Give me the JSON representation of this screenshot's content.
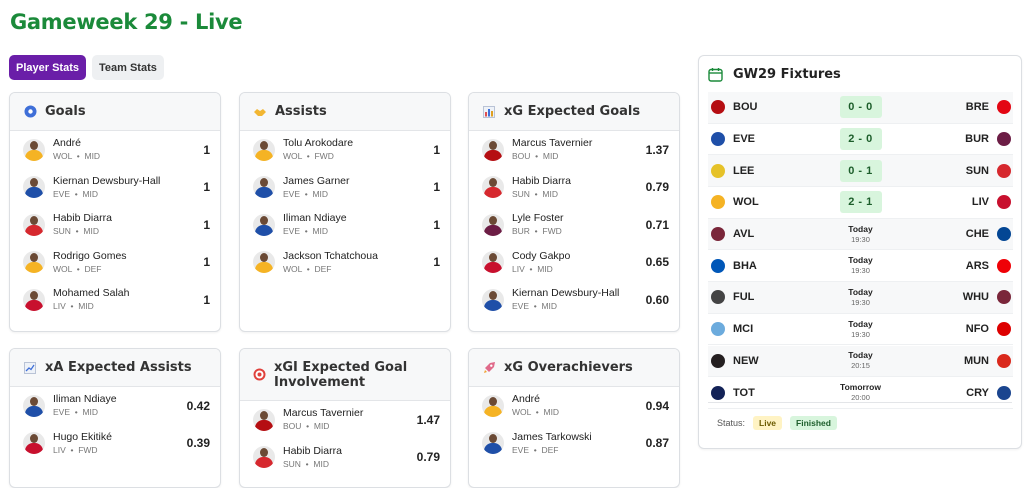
{
  "page": {
    "title": "Gameweek 29 - Live"
  },
  "tabs": [
    {
      "label": "Player Stats",
      "active": true
    },
    {
      "label": "Team Stats",
      "active": false
    }
  ],
  "cards": {
    "goals": {
      "title": "Goals",
      "icon": "soccer-ball-icon",
      "players": [
        {
          "name": "André",
          "team": "WOL",
          "pos": "MID",
          "value": "1",
          "kit": "#f5b324"
        },
        {
          "name": "Kiernan Dewsbury-Hall",
          "team": "EVE",
          "pos": "MID",
          "value": "1",
          "kit": "#1f4fa8"
        },
        {
          "name": "Habib Diarra",
          "team": "SUN",
          "pos": "MID",
          "value": "1",
          "kit": "#d6282e"
        },
        {
          "name": "Rodrigo Gomes",
          "team": "WOL",
          "pos": "DEF",
          "value": "1",
          "kit": "#f5b324"
        },
        {
          "name": "Mohamed Salah",
          "team": "LIV",
          "pos": "MID",
          "value": "1",
          "kit": "#c8102e"
        }
      ]
    },
    "assists": {
      "title": "Assists",
      "icon": "handshake-icon",
      "players": [
        {
          "name": "Tolu Arokodare",
          "team": "WOL",
          "pos": "FWD",
          "value": "1",
          "kit": "#f5b324"
        },
        {
          "name": "James Garner",
          "team": "EVE",
          "pos": "MID",
          "value": "1",
          "kit": "#1f4fa8"
        },
        {
          "name": "Iliman Ndiaye",
          "team": "EVE",
          "pos": "MID",
          "value": "1",
          "kit": "#1f4fa8"
        },
        {
          "name": "Jackson Tchatchoua",
          "team": "WOL",
          "pos": "DEF",
          "value": "1",
          "kit": "#f5b324"
        }
      ]
    },
    "xg": {
      "title": "xG Expected Goals",
      "icon": "bar-chart-icon",
      "players": [
        {
          "name": "Marcus Tavernier",
          "team": "BOU",
          "pos": "MID",
          "value": "1.37",
          "kit": "#b50e12"
        },
        {
          "name": "Habib Diarra",
          "team": "SUN",
          "pos": "MID",
          "value": "0.79",
          "kit": "#d6282e"
        },
        {
          "name": "Lyle Foster",
          "team": "BUR",
          "pos": "FWD",
          "value": "0.71",
          "kit": "#6c1d45"
        },
        {
          "name": "Cody Gakpo",
          "team": "LIV",
          "pos": "MID",
          "value": "0.65",
          "kit": "#c8102e"
        },
        {
          "name": "Kiernan Dewsbury-Hall",
          "team": "EVE",
          "pos": "MID",
          "value": "0.60",
          "kit": "#1f4fa8"
        }
      ]
    },
    "xa": {
      "title": "xA Expected Assists",
      "icon": "trend-chart-icon",
      "players": [
        {
          "name": "Iliman Ndiaye",
          "team": "EVE",
          "pos": "MID",
          "value": "0.42",
          "kit": "#1f4fa8"
        },
        {
          "name": "Hugo Ekitiké",
          "team": "LIV",
          "pos": "FWD",
          "value": "0.39",
          "kit": "#c8102e"
        }
      ]
    },
    "xgi": {
      "title": "xGI Expected Goal Involvement",
      "icon": "target-icon",
      "players": [
        {
          "name": "Marcus Tavernier",
          "team": "BOU",
          "pos": "MID",
          "value": "1.47",
          "kit": "#b50e12"
        },
        {
          "name": "Habib Diarra",
          "team": "SUN",
          "pos": "MID",
          "value": "0.79",
          "kit": "#d6282e"
        }
      ]
    },
    "xgo": {
      "title": "xG Overachievers",
      "icon": "rocket-icon",
      "players": [
        {
          "name": "André",
          "team": "WOL",
          "pos": "MID",
          "value": "0.94",
          "kit": "#f5b324"
        },
        {
          "name": "James Tarkowski",
          "team": "EVE",
          "pos": "DEF",
          "value": "0.87",
          "kit": "#1f4fa8"
        }
      ]
    }
  },
  "fixtures": {
    "title": "GW29 Fixtures",
    "icon": "calendar-icon",
    "matches": [
      {
        "home": "BOU",
        "away": "BRE",
        "score": "0 - 0",
        "hc": "#b50e12",
        "ac": "#e30613"
      },
      {
        "home": "EVE",
        "away": "BUR",
        "score": "2 - 0",
        "hc": "#1f4fa8",
        "ac": "#6c1d45"
      },
      {
        "home": "LEE",
        "away": "SUN",
        "score": "0 - 1",
        "hc": "#e6c229",
        "ac": "#d6282e"
      },
      {
        "home": "WOL",
        "away": "LIV",
        "score": "2 - 1",
        "hc": "#f5b324",
        "ac": "#c8102e"
      },
      {
        "home": "AVL",
        "away": "CHE",
        "day": "Today",
        "time": "19:30",
        "hc": "#7a263a",
        "ac": "#034694"
      },
      {
        "home": "BHA",
        "away": "ARS",
        "day": "Today",
        "time": "19:30",
        "hc": "#0057b8",
        "ac": "#ef0107"
      },
      {
        "home": "FUL",
        "away": "WHU",
        "day": "Today",
        "time": "19:30",
        "hc": "#444444",
        "ac": "#7a263a"
      },
      {
        "home": "MCI",
        "away": "NFO",
        "day": "Today",
        "time": "19:30",
        "hc": "#6cabdd",
        "ac": "#dd0000"
      },
      {
        "home": "NEW",
        "away": "MUN",
        "day": "Today",
        "time": "20:15",
        "hc": "#241f20",
        "ac": "#da291c"
      },
      {
        "home": "TOT",
        "away": "CRY",
        "day": "Tomorrow",
        "time": "20:00",
        "hc": "#132257",
        "ac": "#1b458f"
      }
    ],
    "status_label": "Status:",
    "live_label": "Live",
    "finished_label": "Finished"
  }
}
